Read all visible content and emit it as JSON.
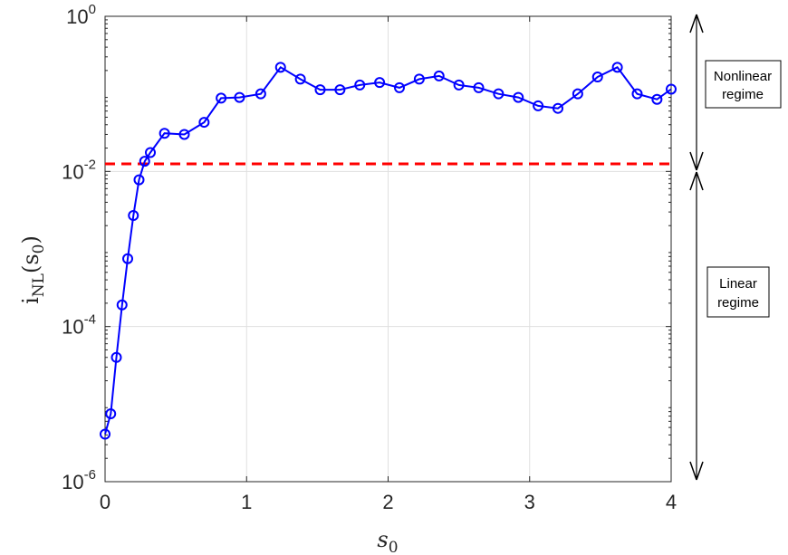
{
  "chart_data": {
    "type": "line",
    "title": "",
    "xlabel": "s_0",
    "ylabel_main": "i",
    "ylabel_sub": "NL",
    "ylabel_paren": "(s",
    "ylabel_paren_sub": "0",
    "ylabel_close": ")",
    "xlim": [
      0,
      4
    ],
    "ylim": [
      1e-06,
      1
    ],
    "yscale": "log",
    "grid": true,
    "x_ticks": [
      0,
      1,
      2,
      3,
      4
    ],
    "x_tick_labels": [
      "0",
      "1",
      "2",
      "3",
      "4"
    ],
    "y_ticks": [
      {
        "value": 1e-06,
        "base": "10",
        "exp": "-6"
      },
      {
        "value": 0.0001,
        "base": "10",
        "exp": "-4"
      },
      {
        "value": 0.01,
        "base": "10",
        "exp": "-2"
      },
      {
        "value": 1,
        "base": "10",
        "exp": "0"
      }
    ],
    "series": [
      {
        "color": "#0000ff",
        "marker": "circle",
        "x": [
          0.0,
          0.04,
          0.08,
          0.12,
          0.16,
          0.2,
          0.24,
          0.28,
          0.32,
          0.42,
          0.56,
          0.7,
          0.82,
          0.95,
          1.1,
          1.24,
          1.38,
          1.52,
          1.66,
          1.8,
          1.94,
          2.08,
          2.22,
          2.36,
          2.5,
          2.64,
          2.78,
          2.92,
          3.06,
          3.2,
          3.34,
          3.48,
          3.62,
          3.76,
          3.9,
          4.0
        ],
        "y": [
          4.1e-06,
          7.5e-06,
          4e-05,
          0.00019,
          0.00075,
          0.0027,
          0.0078,
          0.0135,
          0.0175,
          0.031,
          0.03,
          0.043,
          0.088,
          0.09,
          0.1,
          0.22,
          0.155,
          0.113,
          0.113,
          0.13,
          0.14,
          0.12,
          0.155,
          0.17,
          0.13,
          0.12,
          0.1,
          0.09,
          0.07,
          0.065,
          0.1,
          0.165,
          0.22,
          0.1,
          0.085,
          0.115
        ]
      }
    ],
    "threshold": {
      "y": 0.0125,
      "color": "#ff0000",
      "style": "dashed"
    },
    "annotations": [
      {
        "name": "nonlinear",
        "lines": [
          "Nonlinear",
          "regime"
        ]
      },
      {
        "name": "linear",
        "lines": [
          "Linear",
          "regime"
        ]
      }
    ]
  }
}
